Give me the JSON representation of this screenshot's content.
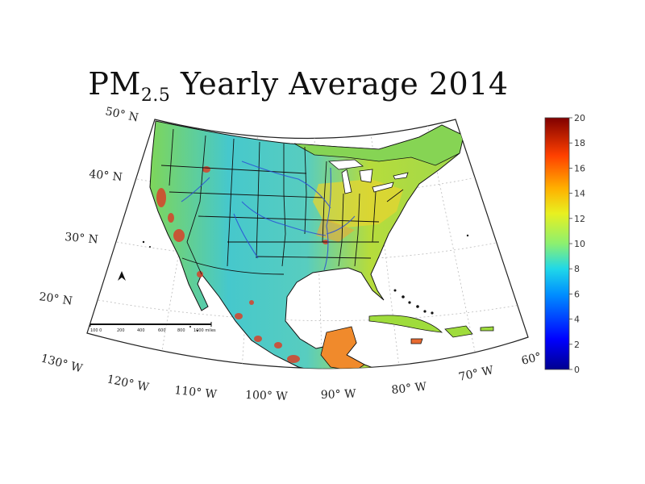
{
  "title": {
    "main": "PM",
    "sub": "2.5",
    "rest": " Yearly Average 2014"
  },
  "map": {
    "lat_labels": [
      "50° N",
      "40° N",
      "30° N",
      "20° N"
    ],
    "lon_labels": [
      "130° W",
      "120° W",
      "110° W",
      "100° W",
      "90° W",
      "80° W",
      "70° W",
      "60°"
    ],
    "scale_bar_labels": [
      "100 0",
      "200",
      "400",
      "600",
      "800",
      "1000 miles"
    ],
    "colors": {
      "land_low": "#3fc4d6",
      "land_mid": "#8fd84a",
      "land_high": "#f2c522",
      "hotspot": "#d8412a",
      "water": "#ffffff",
      "boundaries": "#111111",
      "rivers": "#2a4fd6"
    }
  },
  "colorbar": {
    "min": 0,
    "max": 20,
    "ticks": [
      "20",
      "18",
      "16",
      "14",
      "12",
      "10",
      "8",
      "6",
      "4",
      "2",
      "0"
    ]
  }
}
